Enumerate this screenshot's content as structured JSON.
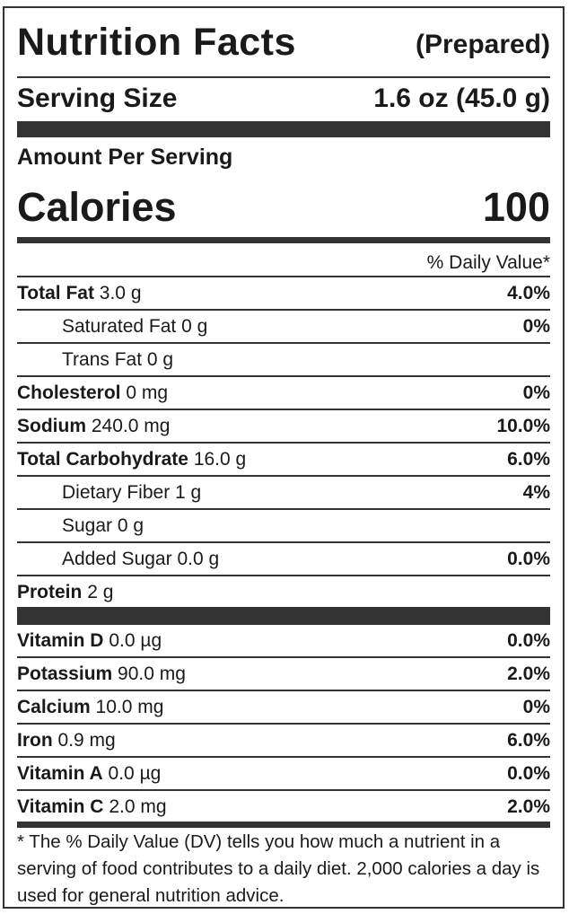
{
  "label": {
    "title": "Nutrition Facts",
    "subtitle": "(Prepared)",
    "serving_size_label": "Serving Size",
    "serving_size_value": "1.6 oz (45.0 g)",
    "amount_per_serving": "Amount Per Serving",
    "calories_label": "Calories",
    "calories_value": "100",
    "dv_header": "% Daily Value*"
  },
  "nutrients": [
    {
      "name": "Total Fat",
      "amount": "3.0 g",
      "dv": "4.0%",
      "bold": true,
      "indent": false
    },
    {
      "name": "Saturated Fat",
      "amount": "0 g",
      "dv": "0%",
      "bold": false,
      "indent": true
    },
    {
      "name": "Trans Fat",
      "amount": "0 g",
      "dv": "",
      "bold": false,
      "indent": true
    },
    {
      "name": "Cholesterol",
      "amount": "0 mg",
      "dv": "0%",
      "bold": true,
      "indent": false
    },
    {
      "name": "Sodium",
      "amount": "240.0 mg",
      "dv": "10.0%",
      "bold": true,
      "indent": false
    },
    {
      "name": "Total Carbohydrate",
      "amount": "16.0 g",
      "dv": "6.0%",
      "bold": true,
      "indent": false
    },
    {
      "name": "Dietary Fiber",
      "amount": "1 g",
      "dv": "4%",
      "bold": false,
      "indent": true
    },
    {
      "name": "Sugar",
      "amount": "0 g",
      "dv": "",
      "bold": false,
      "indent": true
    },
    {
      "name": "Added Sugar",
      "amount": "0.0 g",
      "dv": "0.0%",
      "bold": false,
      "indent": true
    },
    {
      "name": "Protein",
      "amount": "2 g",
      "dv": "",
      "bold": true,
      "indent": false
    }
  ],
  "vitamins": [
    {
      "name": "Vitamin D",
      "amount": "0.0 µg",
      "dv": "0.0%"
    },
    {
      "name": "Potassium",
      "amount": "90.0 mg",
      "dv": "2.0%"
    },
    {
      "name": "Calcium",
      "amount": "10.0 mg",
      "dv": "0%"
    },
    {
      "name": "Iron",
      "amount": "0.9 mg",
      "dv": "6.0%"
    },
    {
      "name": "Vitamin A",
      "amount": "0.0 µg",
      "dv": "0.0%"
    },
    {
      "name": "Vitamin C",
      "amount": "2.0 mg",
      "dv": "2.0%"
    }
  ],
  "footnote": "* The % Daily Value (DV) tells you how much a nutrient in a serving of food contributes to a daily diet. 2,000 calories a day is used for general nutrition advice."
}
